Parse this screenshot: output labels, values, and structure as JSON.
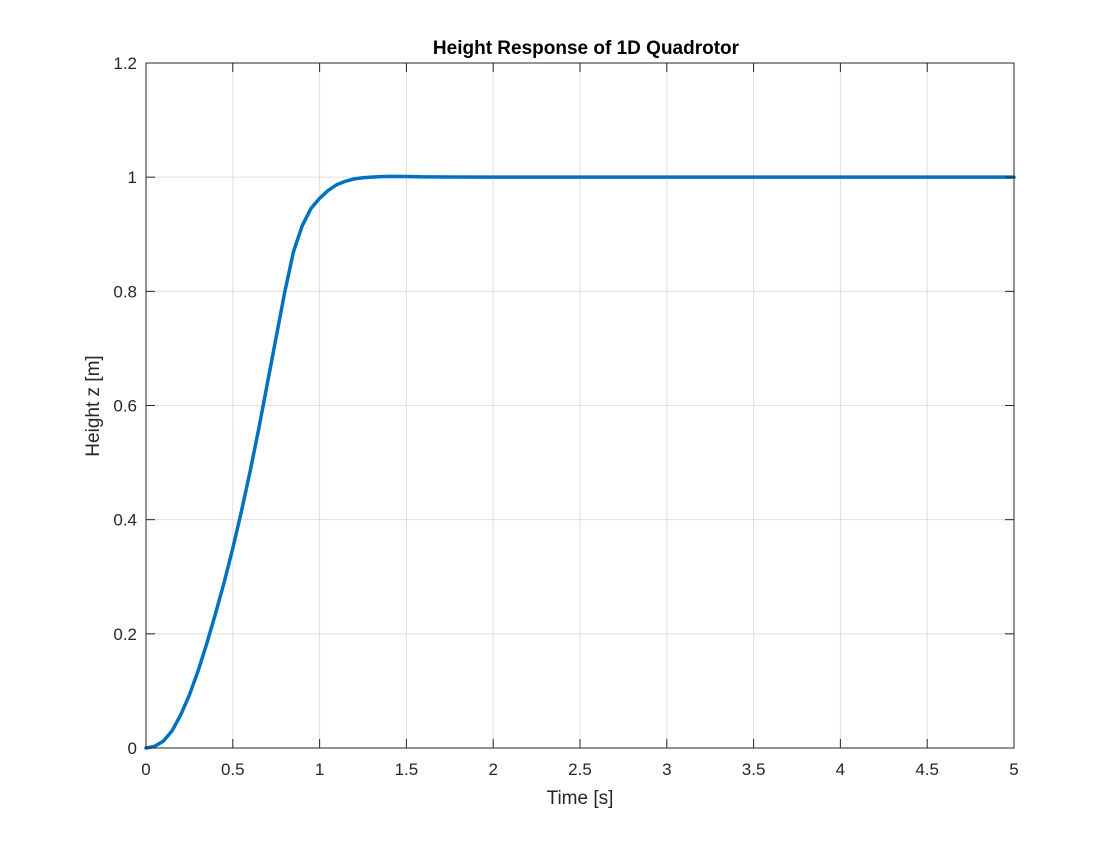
{
  "chart_data": {
    "type": "line",
    "title": "Height Response of 1D Quadrotor",
    "xlabel": "Time [s]",
    "ylabel": "Height z [m]",
    "xlim": [
      0,
      5
    ],
    "ylim": [
      0,
      1.2
    ],
    "xticks": [
      "0",
      "0.5",
      "1",
      "1.5",
      "2",
      "2.5",
      "3",
      "3.5",
      "4",
      "4.5",
      "5"
    ],
    "yticks": [
      "0",
      "0.2",
      "0.4",
      "0.6",
      "0.8",
      "1",
      "1.2"
    ],
    "grid": true,
    "box": true,
    "series": [
      {
        "color": "#0072bd",
        "x": [
          0,
          0.05,
          0.1,
          0.15,
          0.2,
          0.25,
          0.3,
          0.35,
          0.4,
          0.45,
          0.5,
          0.55,
          0.6,
          0.65,
          0.7,
          0.75,
          0.8,
          0.85,
          0.9,
          0.95,
          1.0,
          1.05,
          1.1,
          1.15,
          1.2,
          1.25,
          1.3,
          1.35,
          1.4,
          1.5,
          1.6,
          1.75,
          2.0,
          2.5,
          3.0,
          3.5,
          4.0,
          4.5,
          5.0
        ],
        "y": [
          0,
          0.003,
          0.012,
          0.03,
          0.058,
          0.093,
          0.135,
          0.183,
          0.235,
          0.29,
          0.35,
          0.415,
          0.485,
          0.56,
          0.64,
          0.72,
          0.8,
          0.87,
          0.915,
          0.945,
          0.963,
          0.977,
          0.987,
          0.993,
          0.997,
          0.999,
          1.0,
          1.001,
          1.0013,
          1.0012,
          1.0006,
          1.0002,
          1.0,
          1.0,
          1.0,
          1.0,
          1.0,
          1.0,
          1.0
        ]
      }
    ]
  }
}
